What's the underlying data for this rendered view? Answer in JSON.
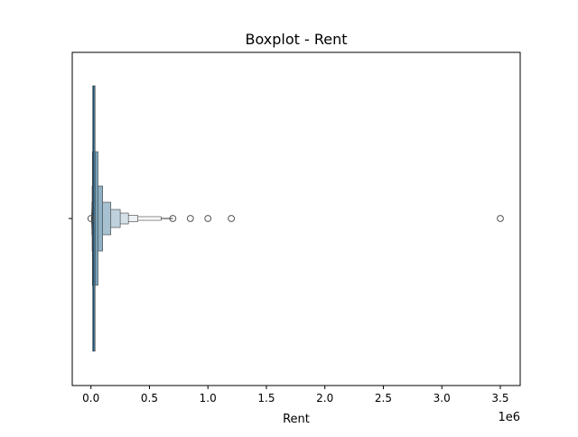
{
  "chart_data": {
    "type": "boxenplot",
    "title": "Boxplot - Rent",
    "xlabel": "Rent",
    "ylabel": "",
    "x_scale_label": "1e6",
    "xlim": [
      -160000,
      3670000
    ],
    "x_ticks": [
      0,
      500000,
      1000000,
      1500000,
      2000000,
      2500000,
      3000000,
      3500000
    ],
    "x_tick_labels": [
      "0.0",
      "0.5",
      "1.0",
      "1.5",
      "2.0",
      "2.5",
      "3.0",
      "3.5"
    ],
    "grid": false,
    "series": [
      {
        "color": "#2e6b8f",
        "boxes": [
          {
            "low": 15000,
            "high": 35000,
            "depth": 1
          },
          {
            "low": 12000,
            "high": 60000,
            "depth": 2
          },
          {
            "low": 10000,
            "high": 100000,
            "depth": 3
          },
          {
            "low": 8000,
            "high": 170000,
            "depth": 4
          },
          {
            "low": 7000,
            "high": 250000,
            "depth": 5
          },
          {
            "low": 6000,
            "high": 320000,
            "depth": 6
          },
          {
            "low": 5000,
            "high": 400000,
            "depth": 7
          },
          {
            "low": 4000,
            "high": 600000,
            "depth": 8
          }
        ],
        "whisker_end": 700000,
        "outliers": [
          0,
          700000,
          850000,
          1000000,
          1200000,
          3500000
        ]
      }
    ]
  }
}
